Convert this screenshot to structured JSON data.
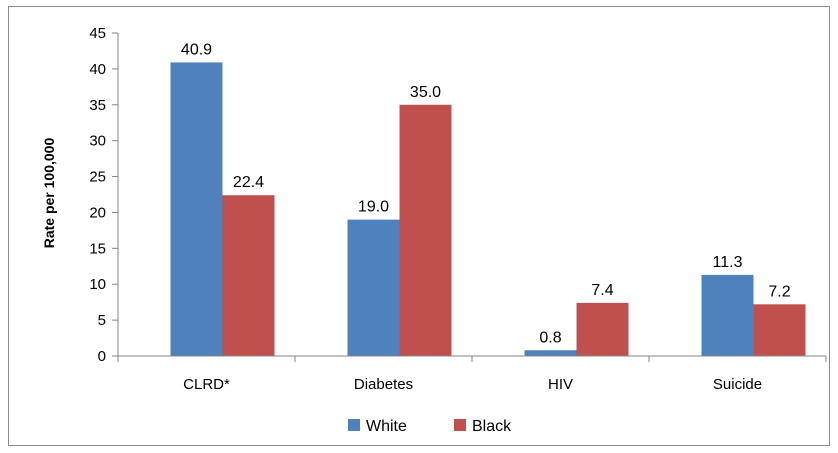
{
  "chart_data": {
    "type": "bar",
    "title": "",
    "xlabel": "",
    "ylabel": "Rate per 100,000",
    "categories": [
      "CLRD*",
      "Diabetes",
      "HIV",
      "Suicide"
    ],
    "series": [
      {
        "name": "White",
        "color": "#4F81BD",
        "values": [
          40.9,
          19.0,
          0.8,
          11.3
        ],
        "labels": [
          "40.9",
          "19.0",
          "0.8",
          "11.3"
        ]
      },
      {
        "name": "Black",
        "color": "#C0504D",
        "values": [
          22.4,
          35.0,
          7.4,
          7.2
        ],
        "labels": [
          "22.4",
          "35.0",
          "7.4",
          "7.2"
        ]
      }
    ],
    "ylim": [
      0,
      45
    ],
    "yticks": [
      "0",
      "5",
      "10",
      "15",
      "20",
      "25",
      "30",
      "35",
      "40",
      "45"
    ],
    "grid": false,
    "legend_position": "bottom"
  }
}
